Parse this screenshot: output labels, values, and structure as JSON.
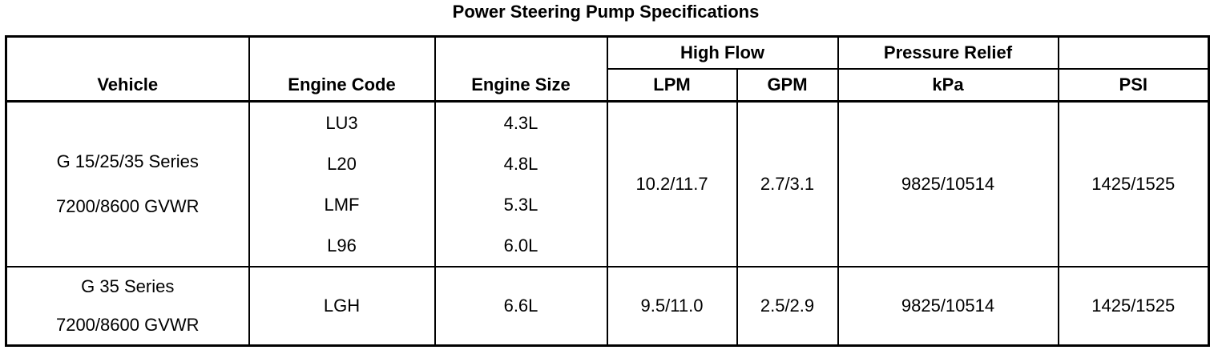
{
  "title": "Power Steering Pump Specifications",
  "headers": {
    "vehicle": "Vehicle",
    "engine_code": "Engine Code",
    "engine_size": "Engine Size",
    "high_flow": "High Flow",
    "pressure_relief": "Pressure Relief",
    "lpm": "LPM",
    "gpm": "GPM",
    "kpa": "kPa",
    "psi": "PSI"
  },
  "rows": [
    {
      "vehicle": [
        "G 15/25/35 Series",
        "7200/8600 GVWR"
      ],
      "engine_codes": [
        "LU3",
        "L20",
        "LMF",
        "L96"
      ],
      "engine_sizes": [
        "4.3L",
        "4.8L",
        "5.3L",
        "6.0L"
      ],
      "lpm": "10.2/11.7",
      "gpm": "2.7/3.1",
      "kpa": "9825/10514",
      "psi": "1425/1525"
    },
    {
      "vehicle": [
        "G 35 Series",
        "7200/8600 GVWR"
      ],
      "engine_codes": [
        "LGH"
      ],
      "engine_sizes": [
        "6.6L"
      ],
      "lpm": "9.5/11.0",
      "gpm": "2.5/2.9",
      "kpa": "9825/10514",
      "psi": "1425/1525"
    }
  ]
}
